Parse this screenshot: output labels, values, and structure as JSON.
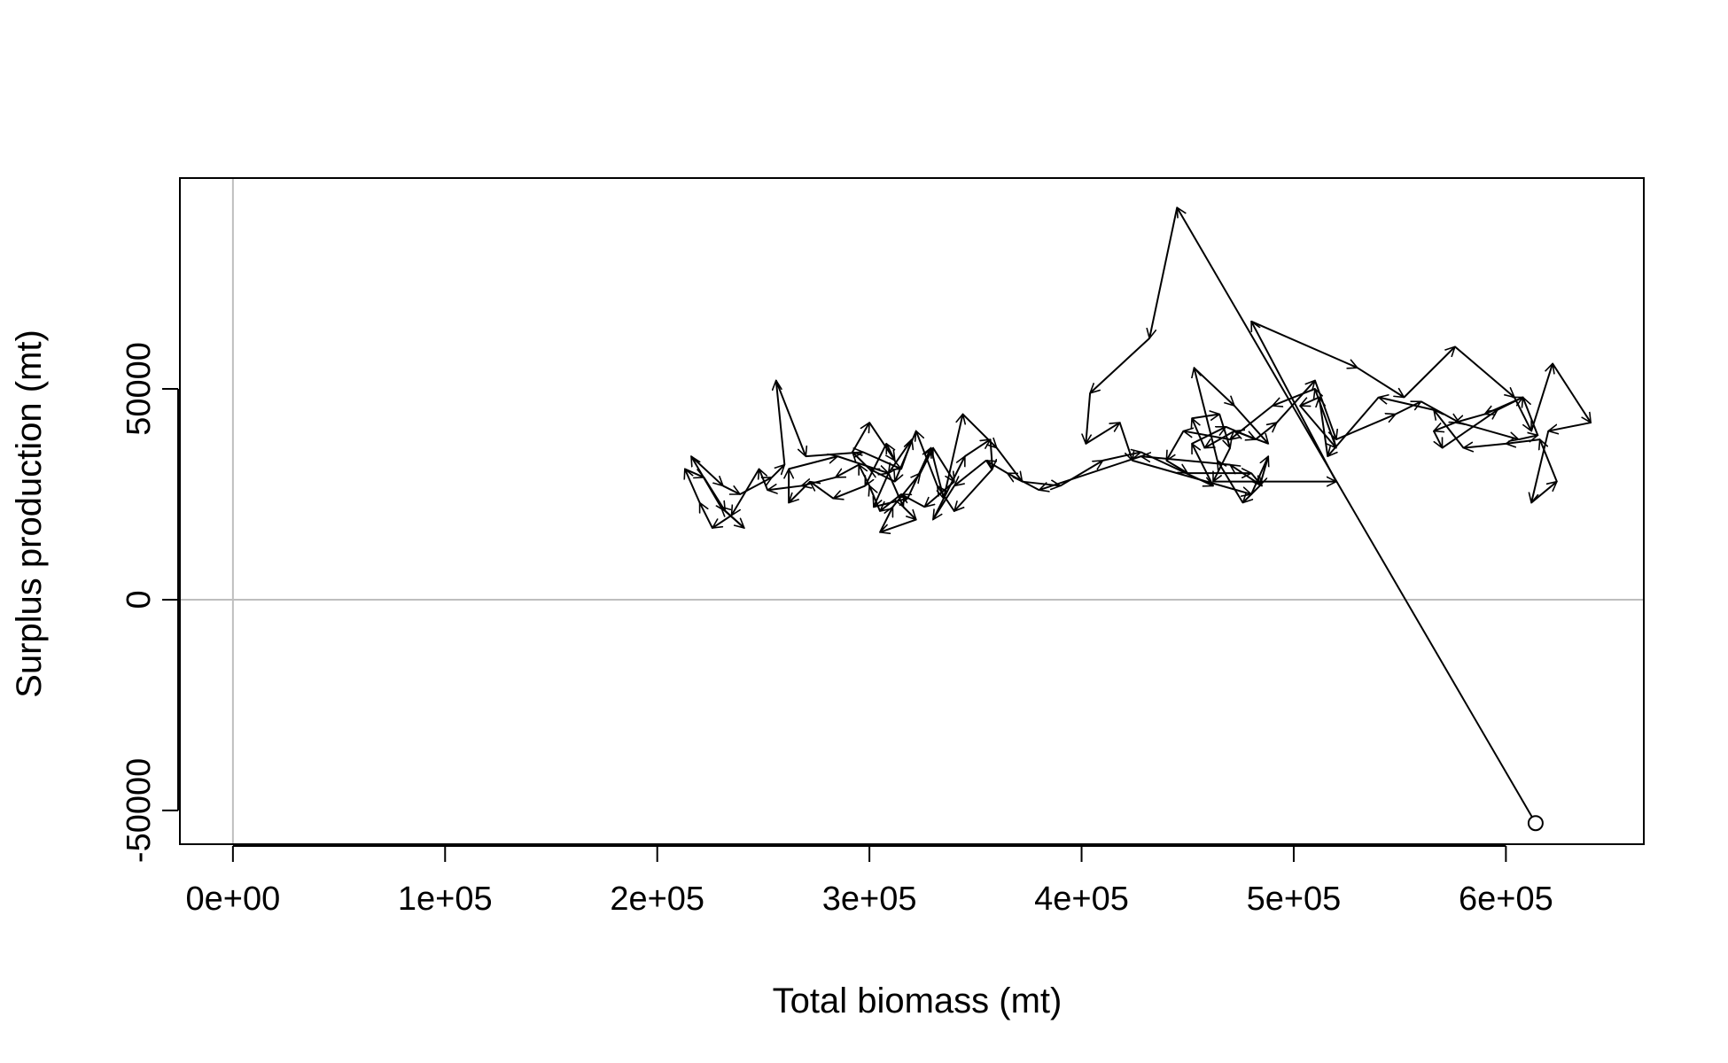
{
  "chart_data": {
    "type": "line",
    "title": "",
    "xlabel": "Total biomass (mt)",
    "ylabel": "Surplus production (mt)",
    "xlim": [
      -25000,
      665000
    ],
    "ylim": [
      -58000,
      100000
    ],
    "x_ticks": [
      {
        "value": 0,
        "label": "0e+00"
      },
      {
        "value": 100000,
        "label": "1e+05"
      },
      {
        "value": 200000,
        "label": "2e+05"
      },
      {
        "value": 300000,
        "label": "3e+05"
      },
      {
        "value": 400000,
        "label": "4e+05"
      },
      {
        "value": 500000,
        "label": "5e+05"
      },
      {
        "value": 600000,
        "label": "6e+05"
      }
    ],
    "y_ticks": [
      {
        "value": -50000,
        "label": "-50000"
      },
      {
        "value": 0,
        "label": "0"
      },
      {
        "value": 50000,
        "label": "50000"
      }
    ],
    "reference_lines": {
      "x": [
        0
      ],
      "y": [
        0
      ],
      "color": "#bebebe"
    },
    "start_marker": "open-circle",
    "line_color": "#000000",
    "series": [
      {
        "values": [
          [
            614000,
            -53000
          ],
          [
            445000,
            93000
          ],
          [
            432000,
            62000
          ],
          [
            404000,
            49000
          ],
          [
            402000,
            37000
          ],
          [
            418000,
            42000
          ],
          [
            424000,
            33000
          ],
          [
            480000,
            25000
          ],
          [
            488000,
            34000
          ],
          [
            484000,
            27000
          ],
          [
            476000,
            23000
          ],
          [
            464000,
            33000
          ],
          [
            453000,
            55000
          ],
          [
            472000,
            46000
          ],
          [
            488000,
            37000
          ],
          [
            472000,
            40000
          ],
          [
            458000,
            36000
          ],
          [
            452000,
            43000
          ],
          [
            465000,
            44000
          ],
          [
            470000,
            36000
          ],
          [
            462000,
            28000
          ],
          [
            520000,
            28000
          ],
          [
            480000,
            66000
          ],
          [
            530000,
            55000
          ],
          [
            552000,
            48000
          ],
          [
            576000,
            60000
          ],
          [
            604000,
            48000
          ],
          [
            612000,
            40000
          ],
          [
            622000,
            56000
          ],
          [
            640000,
            42000
          ],
          [
            620000,
            40000
          ],
          [
            612000,
            23000
          ],
          [
            624000,
            28000
          ],
          [
            616000,
            38000
          ],
          [
            600000,
            37000
          ],
          [
            580000,
            36000
          ],
          [
            566000,
            45000
          ],
          [
            540000,
            48000
          ],
          [
            516000,
            34000
          ],
          [
            512000,
            48000
          ],
          [
            503000,
            46000
          ],
          [
            520000,
            36000
          ],
          [
            510000,
            50000
          ],
          [
            490000,
            46000
          ],
          [
            470000,
            38000
          ],
          [
            448000,
            40000
          ],
          [
            440000,
            33000
          ],
          [
            450000,
            30000
          ],
          [
            480000,
            30000
          ],
          [
            485000,
            27000
          ],
          [
            470000,
            32000
          ],
          [
            428000,
            34000
          ],
          [
            380000,
            26000
          ],
          [
            365000,
            30000
          ],
          [
            355000,
            33000
          ],
          [
            340000,
            27000
          ],
          [
            330000,
            19000
          ],
          [
            345000,
            34000
          ],
          [
            357000,
            38000
          ],
          [
            358000,
            31000
          ],
          [
            340000,
            21000
          ],
          [
            332000,
            27000
          ],
          [
            322000,
            40000
          ],
          [
            312000,
            28000
          ],
          [
            300000,
            31000
          ],
          [
            292000,
            35000
          ],
          [
            300000,
            42000
          ],
          [
            312000,
            33000
          ],
          [
            308000,
            37000
          ],
          [
            298000,
            27000
          ],
          [
            283000,
            24000
          ],
          [
            272000,
            28000
          ],
          [
            262000,
            23000
          ],
          [
            262000,
            31000
          ],
          [
            285000,
            34000
          ],
          [
            309000,
            30000
          ],
          [
            316000,
            22000
          ],
          [
            322000,
            19000
          ],
          [
            305000,
            16000
          ],
          [
            311000,
            22000
          ],
          [
            324000,
            30000
          ],
          [
            330000,
            36000
          ],
          [
            340000,
            28000
          ],
          [
            326000,
            22000
          ],
          [
            315000,
            25000
          ],
          [
            305000,
            21000
          ],
          [
            300000,
            27000
          ],
          [
            295000,
            32000
          ],
          [
            284000,
            29000
          ],
          [
            268000,
            27000
          ],
          [
            252000,
            26000
          ],
          [
            248000,
            31000
          ],
          [
            235000,
            20000
          ],
          [
            226000,
            17000
          ],
          [
            220000,
            23000
          ],
          [
            213000,
            31000
          ],
          [
            222000,
            29000
          ],
          [
            232000,
            21000
          ],
          [
            241000,
            17000
          ],
          [
            230000,
            22000
          ],
          [
            216000,
            34000
          ],
          [
            231000,
            27000
          ],
          [
            239000,
            25000
          ],
          [
            254000,
            29000
          ],
          [
            260000,
            32000
          ],
          [
            256000,
            52000
          ],
          [
            270000,
            34000
          ],
          [
            297000,
            35000
          ],
          [
            315000,
            31000
          ],
          [
            320000,
            38000
          ],
          [
            309000,
            30000
          ],
          [
            302000,
            22000
          ],
          [
            318000,
            24000
          ],
          [
            329000,
            36000
          ],
          [
            335000,
            24000
          ],
          [
            344000,
            44000
          ],
          [
            360000,
            36000
          ],
          [
            372000,
            28000
          ],
          [
            390000,
            27000
          ],
          [
            410000,
            33000
          ],
          [
            428000,
            35000
          ],
          [
            462000,
            27000
          ],
          [
            452000,
            37000
          ],
          [
            468000,
            41000
          ],
          [
            482000,
            38000
          ],
          [
            492000,
            42000
          ],
          [
            510000,
            52000
          ],
          [
            520000,
            38000
          ],
          [
            548000,
            44000
          ],
          [
            560000,
            47000
          ],
          [
            578000,
            42000
          ],
          [
            606000,
            38000
          ],
          [
            615000,
            39000
          ],
          [
            608000,
            48000
          ],
          [
            590000,
            44000
          ],
          [
            576000,
            42000
          ],
          [
            566000,
            40000
          ],
          [
            570000,
            36000
          ],
          [
            596000,
            45000
          ],
          [
            608000,
            48000
          ]
        ]
      }
    ]
  }
}
